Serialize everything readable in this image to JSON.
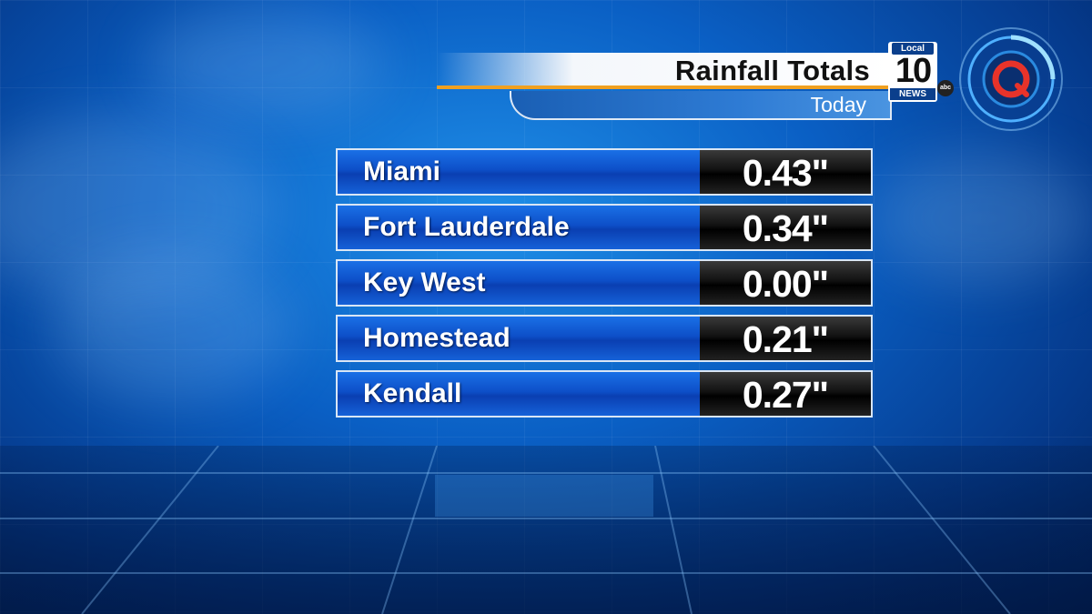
{
  "header": {
    "title": "Rainfall Totals",
    "subtitle": "Today"
  },
  "logo": {
    "local": "Local",
    "number": "10",
    "news": "NEWS",
    "network": "abc"
  },
  "rainfall": [
    {
      "city": "Miami",
      "value": "0.43\""
    },
    {
      "city": "Fort Lauderdale",
      "value": "0.34\""
    },
    {
      "city": "Key West",
      "value": "0.00\""
    },
    {
      "city": "Homestead",
      "value": "0.21\""
    },
    {
      "city": "Kendall",
      "value": "0.27\""
    }
  ],
  "colors": {
    "accent_orange": "#f0a020",
    "row_blue": "#0d4fc8",
    "brand_red": "#e8332a"
  }
}
